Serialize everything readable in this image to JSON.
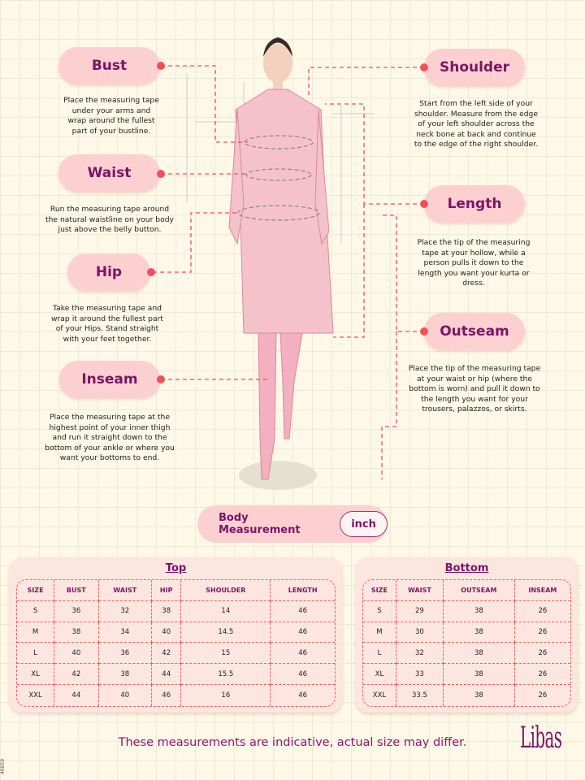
{
  "labels": {
    "bust": {
      "title": "Bust",
      "desc": "Place the measuring tape under your arms and wrap around the fullest part of your bustline."
    },
    "waist": {
      "title": "Waist",
      "desc": "Run the measuring tape around the natural waistline on your body just above the belly button."
    },
    "hip": {
      "title": "Hip",
      "desc": "Take the measuring tape and wrap it around the fullest part of your Hips. Stand straight with your feet together."
    },
    "inseam": {
      "title": "Inseam",
      "desc": "Place the measuring tape at the highest point of your inner thigh and run it straight down to the bottom of your ankle or where you want your bottoms to end."
    },
    "shoulder": {
      "title": "Shoulder",
      "desc": "Start from the left side of your shoulder. Measure from the edge of your left shoulder across the neck bone at back and continue to the edge of the right shoulder."
    },
    "length": {
      "title": "Length",
      "desc": "Place the tip of the measuring tape at your hollow, while a person pulls it down to the length you want your kurta or dress."
    },
    "outseam": {
      "title": "Outseam",
      "desc": "Place the tip of the measuring tape at your waist or hip (where the bottom is worn) and pull it down to the length you want for your trousers, palazzos, or skirts."
    }
  },
  "body_measurement": {
    "label": "Body Measurement",
    "unit": "inch"
  },
  "top": {
    "title": "Top",
    "headers": [
      "SIZE",
      "BUST",
      "WAIST",
      "HIP",
      "SHOULDER",
      "LENGTH"
    ],
    "rows": [
      [
        "S",
        "36",
        "32",
        "38",
        "14",
        "46"
      ],
      [
        "M",
        "38",
        "34",
        "40",
        "14.5",
        "46"
      ],
      [
        "L",
        "40",
        "36",
        "42",
        "15",
        "46"
      ],
      [
        "XL",
        "42",
        "38",
        "44",
        "15.5",
        "46"
      ],
      [
        "XXL",
        "44",
        "40",
        "46",
        "16",
        "46"
      ]
    ]
  },
  "bottom": {
    "title": "Bottom",
    "headers": [
      "SIZE",
      "WAIST",
      "OUTSEAM",
      "INSEAM"
    ],
    "rows": [
      [
        "S",
        "29",
        "38",
        "26"
      ],
      [
        "M",
        "30",
        "38",
        "26"
      ],
      [
        "L",
        "32",
        "38",
        "26"
      ],
      [
        "XL",
        "33",
        "38",
        "26"
      ],
      [
        "XXL",
        "33.5",
        "38",
        "26"
      ]
    ]
  },
  "footer": {
    "note": "These measurements are indicative, actual size may differ.",
    "logo": "Libas",
    "code": "49859"
  },
  "colors": {
    "pill": "#fcd0d0",
    "accent": "#7a1468",
    "dot": "#f0505a"
  }
}
